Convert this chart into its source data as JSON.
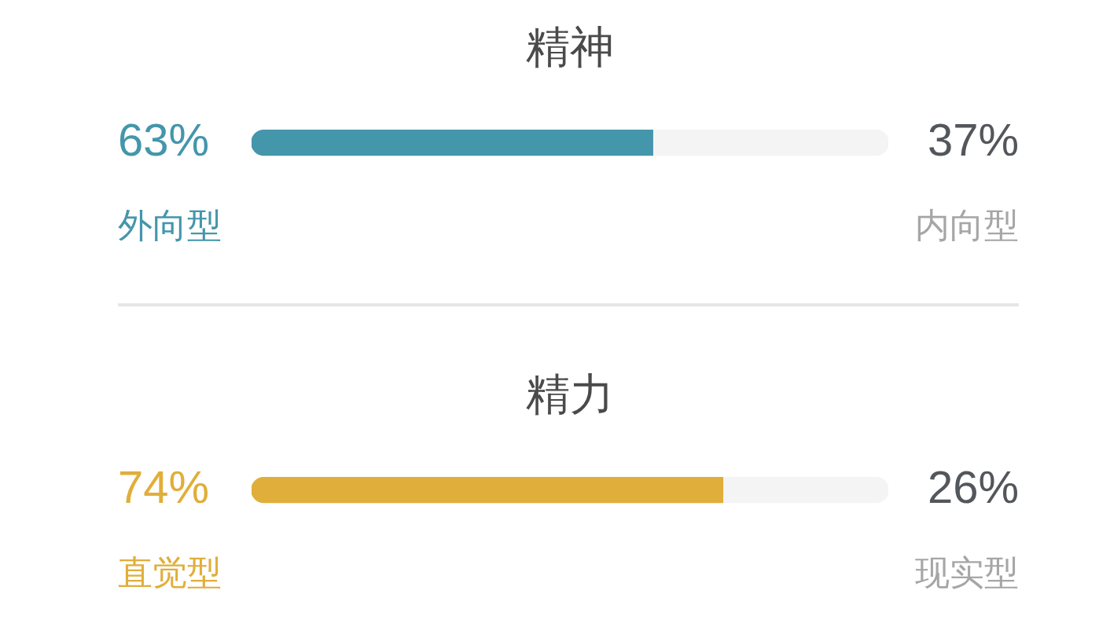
{
  "chart_data": [
    {
      "type": "bar",
      "orientation": "horizontal",
      "stacked": true,
      "title": "精神",
      "categories": [
        null
      ],
      "xlim": [
        0,
        100
      ],
      "tick_labels": false,
      "series": [
        {
          "name": "外向型",
          "color": "#4496ab",
          "values": [
            63
          ],
          "value_labels": [
            "63%"
          ]
        },
        {
          "name": "内向型",
          "color": "#f4f4f4",
          "values": [
            37
          ],
          "value_labels": [
            "37%"
          ]
        }
      ]
    },
    {
      "type": "bar",
      "orientation": "horizontal",
      "stacked": true,
      "title": "精力",
      "categories": [
        null
      ],
      "xlim": [
        0,
        100
      ],
      "tick_labels": false,
      "series": [
        {
          "name": "直觉型",
          "color": "#e0ae3a",
          "values": [
            74
          ],
          "value_labels": [
            "74%"
          ]
        },
        {
          "name": "现实型",
          "color": "#f4f4f4",
          "values": [
            26
          ],
          "value_labels": [
            "26%"
          ]
        }
      ]
    }
  ]
}
